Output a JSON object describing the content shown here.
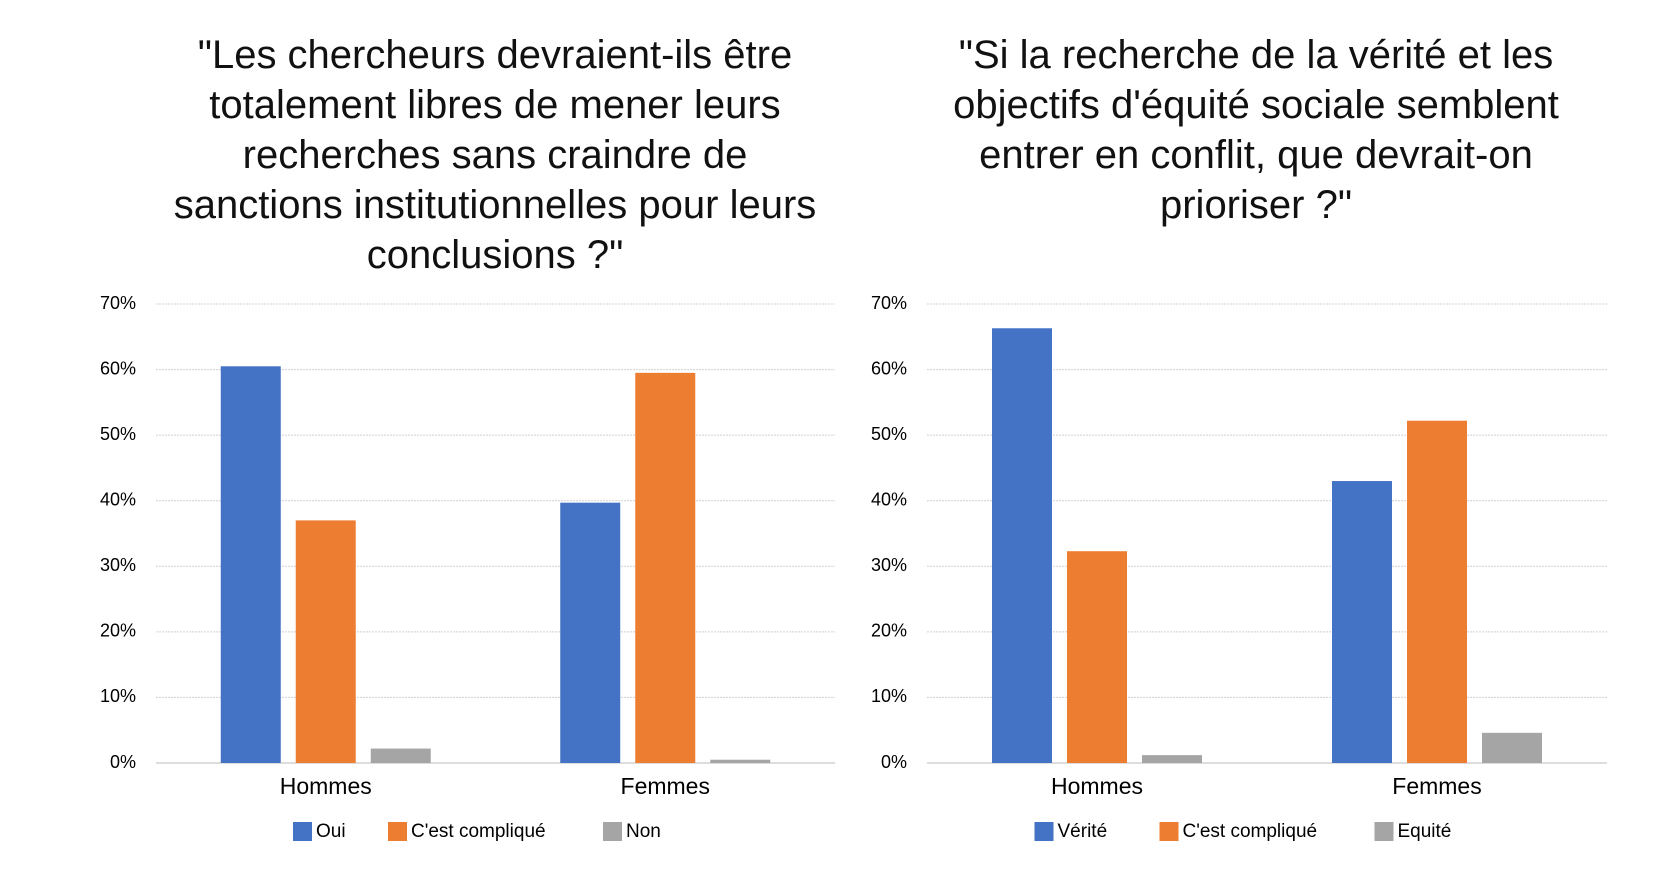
{
  "chart_data": [
    {
      "type": "bar",
      "title": "\"Les chercheurs devraient-ils être totalement libres de mener leurs recherches sans craindre de sanctions institutionnelles pour leurs conclusions ?\"",
      "categories": [
        "Hommes",
        "Femmes"
      ],
      "series": [
        {
          "name": "Oui",
          "color": "#4472c4",
          "values": [
            60.5,
            39.7
          ]
        },
        {
          "name": "C'est compliqué",
          "color": "#ed7d31",
          "values": [
            37,
            59.5
          ]
        },
        {
          "name": "Non",
          "color": "#a5a5a5",
          "values": [
            2.2,
            0.5
          ]
        }
      ],
      "ylim": [
        0,
        70
      ],
      "yticks": [
        {
          "value": 0,
          "label": "0%"
        },
        {
          "value": 10,
          "label": "10%"
        },
        {
          "value": 20,
          "label": "20%"
        },
        {
          "value": 30,
          "label": "30%"
        },
        {
          "value": 40,
          "label": "40%"
        },
        {
          "value": 50,
          "label": "50%"
        },
        {
          "value": 60,
          "label": "60%"
        },
        {
          "value": 70,
          "label": "70%"
        }
      ],
      "grid": true,
      "legend": "bottom"
    },
    {
      "type": "bar",
      "title": "\"Si la recherche de la vérité et les objectifs d'équité sociale semblent entrer en conflit, que devrait-on prioriser ?\"",
      "categories": [
        "Hommes",
        "Femmes"
      ],
      "series": [
        {
          "name": "Vérité",
          "color": "#4472c4",
          "values": [
            66.3,
            43
          ]
        },
        {
          "name": "C'est compliqué",
          "color": "#ed7d31",
          "values": [
            32.3,
            52.2
          ]
        },
        {
          "name": "Equité",
          "color": "#a5a5a5",
          "values": [
            1.2,
            4.6
          ]
        }
      ],
      "ylim": [
        0,
        70
      ],
      "yticks": [
        {
          "value": 0,
          "label": "0%"
        },
        {
          "value": 10,
          "label": "10%"
        },
        {
          "value": 20,
          "label": "20%"
        },
        {
          "value": 30,
          "label": "30%"
        },
        {
          "value": 40,
          "label": "40%"
        },
        {
          "value": 50,
          "label": "50%"
        },
        {
          "value": 60,
          "label": "60%"
        },
        {
          "value": 70,
          "label": "70%"
        }
      ],
      "grid": true,
      "legend": "bottom"
    }
  ]
}
